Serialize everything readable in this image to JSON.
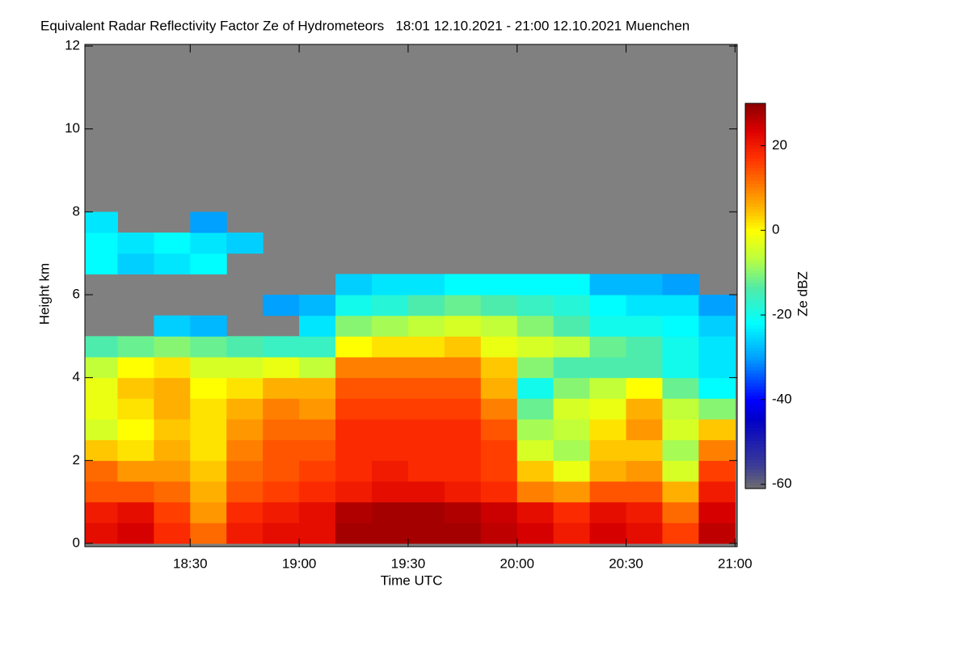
{
  "chart_data": {
    "type": "heatmap",
    "title": "Equivalent Radar Reflectivity Factor Ze of Hydrometeors   18:01 12.10.2021 - 21:00 12.10.2021 Muenchen",
    "x_label": "Time UTC",
    "y_label": "Height km",
    "colorbar_label": "Ze dBZ",
    "x": [
      18.0833,
      18.25,
      18.4167,
      18.5833,
      18.75,
      18.9167,
      19.0833,
      19.25,
      19.4167,
      19.5833,
      19.75,
      19.9167,
      20.0833,
      20.25,
      20.4167,
      20.5833,
      20.75,
      20.9167
    ],
    "y": [
      0.25,
      0.75,
      1.25,
      1.75,
      2.25,
      2.75,
      3.25,
      3.75,
      4.25,
      4.75,
      5.25,
      5.75,
      6.25,
      6.75,
      7.25,
      7.75
    ],
    "values": [
      [
        22,
        24,
        18,
        12,
        20,
        22,
        22,
        28,
        28,
        28,
        28,
        26,
        24,
        20,
        24,
        22,
        16,
        26
      ],
      [
        20,
        22,
        16,
        8,
        18,
        20,
        22,
        27,
        28,
        28,
        27,
        25,
        22,
        18,
        22,
        20,
        12,
        24
      ],
      [
        14,
        14,
        12,
        6,
        14,
        16,
        18,
        20,
        22,
        22,
        20,
        18,
        10,
        8,
        14,
        14,
        6,
        20
      ],
      [
        12,
        8,
        8,
        4,
        12,
        14,
        16,
        18,
        20,
        18,
        18,
        16,
        4,
        -2,
        6,
        8,
        -4,
        16
      ],
      [
        4,
        2,
        6,
        2,
        10,
        14,
        14,
        18,
        18,
        18,
        18,
        16,
        -4,
        -8,
        4,
        4,
        -8,
        10
      ],
      [
        -4,
        0,
        4,
        2,
        8,
        12,
        12,
        18,
        18,
        18,
        18,
        14,
        -8,
        -6,
        2,
        8,
        -4,
        4
      ],
      [
        -2,
        2,
        6,
        2,
        6,
        10,
        8,
        16,
        16,
        16,
        16,
        10,
        -12,
        -4,
        -2,
        6,
        -6,
        -10
      ],
      [
        -2,
        4,
        6,
        0,
        2,
        6,
        6,
        14,
        14,
        14,
        14,
        6,
        -20,
        -10,
        -6,
        0,
        -12,
        -22
      ],
      [
        -6,
        0,
        2,
        -4,
        -4,
        -2,
        -6,
        10,
        10,
        10,
        10,
        4,
        -10,
        -14,
        -14,
        -14,
        -20,
        -24
      ],
      [
        -14,
        -12,
        -10,
        -12,
        -14,
        -16,
        -16,
        0,
        2,
        2,
        4,
        -2,
        -4,
        -6,
        -12,
        -14,
        -20,
        -24
      ],
      [
        null,
        null,
        -26,
        -28,
        null,
        null,
        -24,
        -10,
        -8,
        -6,
        -4,
        -6,
        -10,
        -14,
        -20,
        -20,
        -22,
        -26
      ],
      [
        null,
        null,
        null,
        null,
        null,
        -30,
        -28,
        -20,
        -18,
        -14,
        -12,
        -14,
        -16,
        -18,
        -22,
        -24,
        -24,
        -30
      ],
      [
        null,
        null,
        null,
        null,
        null,
        null,
        null,
        -26,
        -24,
        -24,
        -22,
        -22,
        -22,
        -22,
        -28,
        -28,
        -30,
        null
      ],
      [
        -22,
        -26,
        -24,
        -22,
        null,
        null,
        null,
        null,
        null,
        null,
        null,
        null,
        null,
        null,
        null,
        null,
        null,
        null
      ],
      [
        -22,
        -24,
        -22,
        -24,
        -26,
        null,
        null,
        null,
        null,
        null,
        null,
        null,
        null,
        null,
        null,
        null,
        null,
        null
      ],
      [
        -24,
        null,
        null,
        -30,
        null,
        null,
        null,
        null,
        null,
        null,
        null,
        null,
        null,
        null,
        null,
        null,
        null,
        null
      ]
    ],
    "xlim": [
      18.0167,
      21.01
    ],
    "xticks": [
      {
        "value": 18.5,
        "label": "18:30"
      },
      {
        "value": 19,
        "label": "19:00"
      },
      {
        "value": 19.5,
        "label": "19:30"
      },
      {
        "value": 20,
        "label": "20:00"
      },
      {
        "value": 20.5,
        "label": "20:30"
      },
      {
        "value": 21,
        "label": "21:00"
      }
    ],
    "ylim": [
      0,
      12
    ],
    "yticks": [
      0,
      2,
      4,
      6,
      8,
      10,
      12
    ],
    "zlim": [
      -61,
      30
    ],
    "zticks": [
      -60,
      -40,
      -20,
      0,
      20
    ],
    "background_color": "#808080"
  }
}
